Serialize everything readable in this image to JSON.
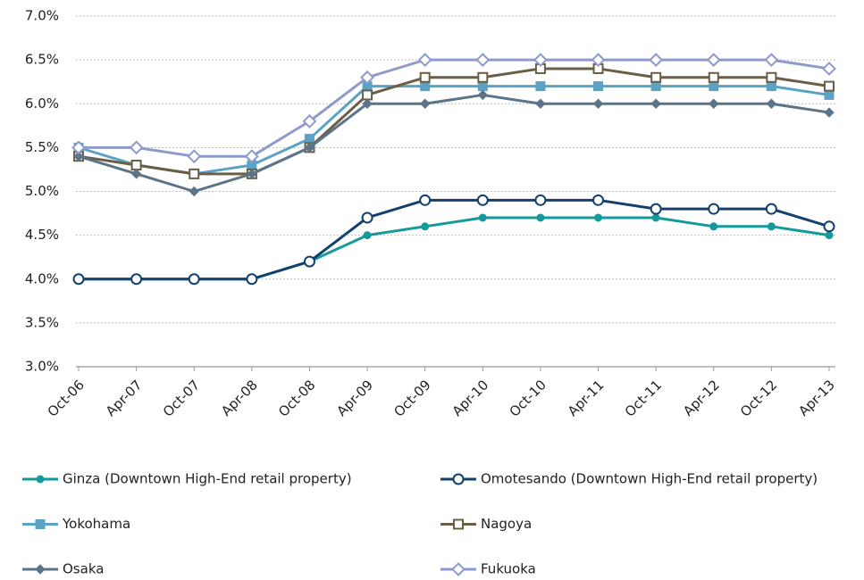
{
  "chart_data": {
    "type": "line",
    "categories": [
      "Oct-06",
      "Apr-07",
      "Oct-07",
      "Apr-08",
      "Oct-08",
      "Apr-09",
      "Oct-09",
      "Apr-10",
      "Oct-10",
      "Apr-11",
      "Oct-11",
      "Apr-12",
      "Oct-12",
      "Apr-13"
    ],
    "series": [
      {
        "name": "Ginza (Downtown High-End retail property)",
        "color": "#159a9c",
        "marker": "circle",
        "filled": true,
        "values": [
          4.0,
          4.0,
          4.0,
          4.0,
          4.2,
          4.5,
          4.6,
          4.7,
          4.7,
          4.7,
          4.7,
          4.6,
          4.6,
          4.5
        ]
      },
      {
        "name": "Omotesando (Downtown High-End retail property)",
        "color": "#12406f",
        "marker": "circle",
        "filled": false,
        "values": [
          4.0,
          4.0,
          4.0,
          4.0,
          4.2,
          4.7,
          4.9,
          4.9,
          4.9,
          4.9,
          4.8,
          4.8,
          4.8,
          4.6
        ]
      },
      {
        "name": "Yokohama",
        "color": "#5aa3c4",
        "marker": "square",
        "filled": true,
        "values": [
          5.5,
          5.3,
          5.2,
          5.3,
          5.6,
          6.2,
          6.2,
          6.2,
          6.2,
          6.2,
          6.2,
          6.2,
          6.2,
          6.1
        ]
      },
      {
        "name": "Nagoya",
        "color": "#6b5e45",
        "marker": "square",
        "filled": false,
        "values": [
          5.4,
          5.3,
          5.2,
          5.2,
          5.5,
          6.1,
          6.3,
          6.3,
          6.4,
          6.4,
          6.3,
          6.3,
          6.3,
          6.2
        ]
      },
      {
        "name": "Osaka",
        "color": "#5b7489",
        "marker": "diamond",
        "filled": true,
        "values": [
          5.4,
          5.2,
          5.0,
          5.2,
          5.5,
          6.0,
          6.0,
          6.1,
          6.0,
          6.0,
          6.0,
          6.0,
          6.0,
          5.9
        ]
      },
      {
        "name": "Fukuoka",
        "color": "#8e9acb",
        "marker": "diamond",
        "filled": false,
        "values": [
          5.5,
          5.5,
          5.4,
          5.4,
          5.8,
          6.3,
          6.5,
          6.5,
          6.5,
          6.5,
          6.5,
          6.5,
          6.5,
          6.4
        ]
      }
    ],
    "ylim": [
      3.0,
      7.0
    ],
    "yticks": [
      {
        "value": 3.0,
        "label": "3.0%"
      },
      {
        "value": 3.5,
        "label": "3.5%"
      },
      {
        "value": 4.0,
        "label": "4.0%"
      },
      {
        "value": 4.5,
        "label": "4.5%"
      },
      {
        "value": 5.0,
        "label": "5.0%"
      },
      {
        "value": 5.5,
        "label": "5.5%"
      },
      {
        "value": 6.0,
        "label": "6.0%"
      },
      {
        "value": 6.5,
        "label": "6.5%"
      },
      {
        "value": 7.0,
        "label": "7.0%"
      }
    ],
    "grid": true
  }
}
